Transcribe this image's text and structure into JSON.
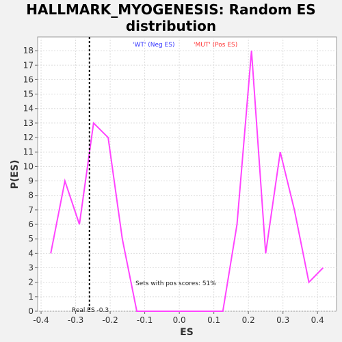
{
  "chart_data": {
    "type": "line",
    "title_line1": "HALLMARK_MYOGENESIS: Random ES",
    "title_line2": "distribution",
    "xlabel": "ES",
    "ylabel": "P(ES)",
    "xlim": [
      -0.41,
      0.455
    ],
    "ylim": [
      0,
      18.95
    ],
    "xticks": [
      "-0.4",
      "-0.3",
      "-0.2",
      "-0.1",
      "0.0",
      "0.1",
      "0.2",
      "0.3",
      "0.4"
    ],
    "yticks": [
      "0",
      "1",
      "2",
      "3",
      "4",
      "5",
      "6",
      "7",
      "8",
      "9",
      "10",
      "11",
      "12",
      "13",
      "14",
      "15",
      "16",
      "17",
      "18"
    ],
    "grid": true,
    "legend": [
      {
        "label": "'WT' (Neg ES)",
        "color": "#3333ff"
      },
      {
        "label": "'MUT' (Pos ES)",
        "color": "#ff3333"
      }
    ],
    "series": [
      {
        "color": "#ff44ff",
        "x": [
          -0.372,
          -0.331,
          -0.289,
          -0.248,
          -0.206,
          -0.165,
          -0.123,
          -0.082,
          -0.04,
          0.001,
          0.043,
          0.084,
          0.126,
          0.167,
          0.209,
          0.25,
          0.292,
          0.333,
          0.375,
          0.416
        ],
        "y": [
          4,
          9,
          6,
          13,
          12,
          5,
          0,
          0,
          0,
          0,
          0,
          0,
          0,
          6,
          18,
          4,
          11,
          7,
          2,
          3
        ]
      }
    ],
    "real_es": -0.26,
    "real_es_label": "Real ES -0.3",
    "pos_scores_label": "Sets with pos scores: 51%"
  }
}
